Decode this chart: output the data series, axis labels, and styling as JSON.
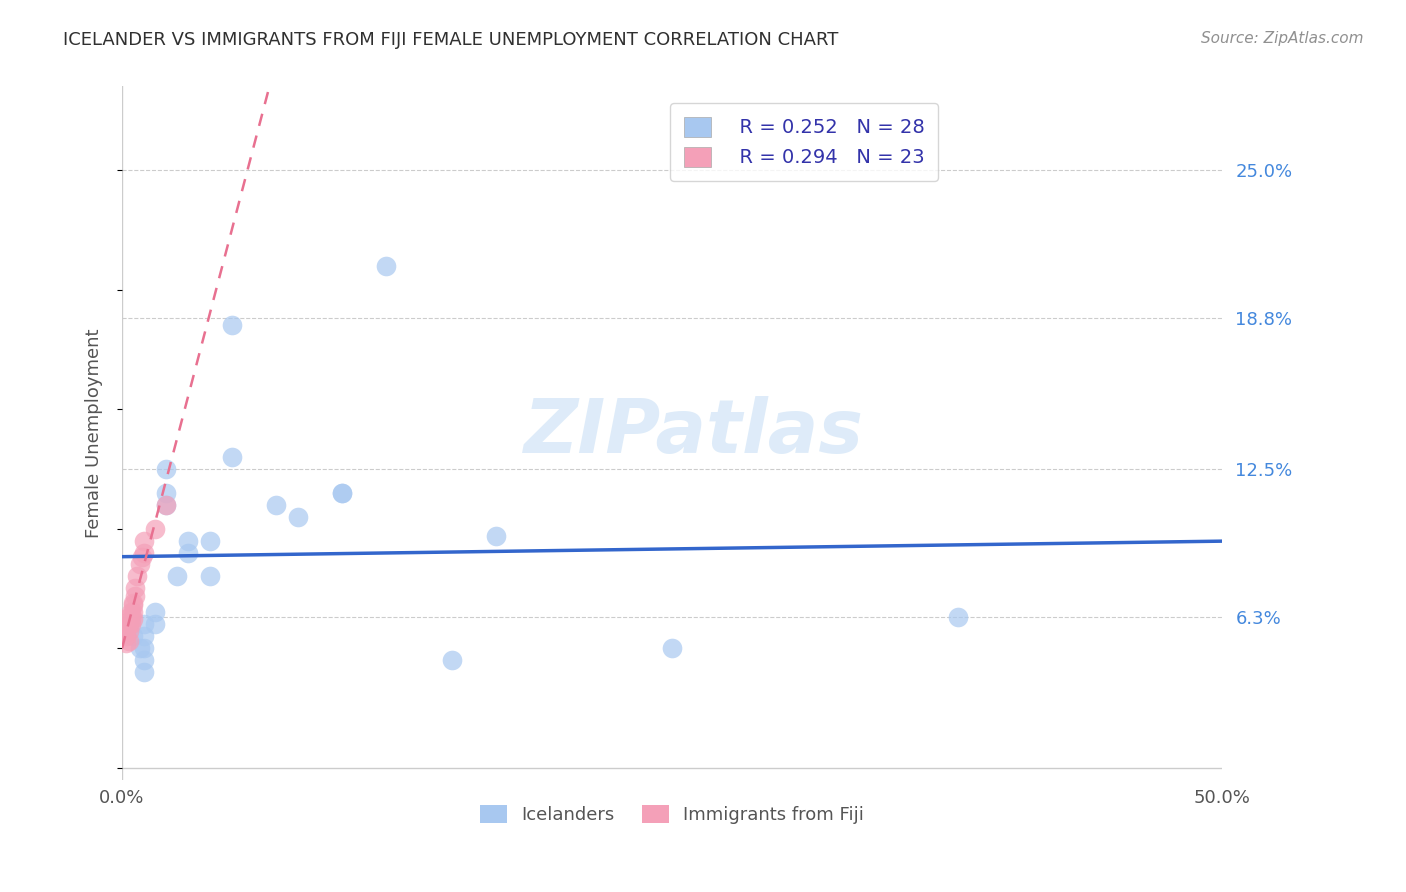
{
  "title": "ICELANDER VS IMMIGRANTS FROM FIJI FEMALE UNEMPLOYMENT CORRELATION CHART",
  "source": "Source: ZipAtlas.com",
  "ylabel": "Female Unemployment",
  "xlim": [
    0.0,
    0.5
  ],
  "ylim": [
    -0.005,
    0.285
  ],
  "ytick_labels_right": [
    "25.0%",
    "18.8%",
    "12.5%",
    "6.3%"
  ],
  "ytick_positions_right": [
    0.25,
    0.188,
    0.125,
    0.063
  ],
  "watermark": "ZIPatlas",
  "legend_r1": "R = 0.252",
  "legend_n1": "N = 28",
  "legend_r2": "R = 0.294",
  "legend_n2": "N = 23",
  "label_icelanders": "Icelanders",
  "label_fiji": "Immigrants from Fiji",
  "color_blue": "#A8C8F0",
  "color_pink": "#F4A0B8",
  "color_line_blue": "#3366CC",
  "color_line_pink": "#E87090",
  "color_title": "#303030",
  "color_source": "#909090",
  "icelanders_x": [
    0.005,
    0.008,
    0.01,
    0.01,
    0.01,
    0.01,
    0.01,
    0.015,
    0.015,
    0.02,
    0.02,
    0.02,
    0.025,
    0.03,
    0.03,
    0.04,
    0.04,
    0.05,
    0.05,
    0.07,
    0.08,
    0.1,
    0.1,
    0.12,
    0.15,
    0.17,
    0.25,
    0.38
  ],
  "icelanders_y": [
    0.055,
    0.05,
    0.06,
    0.055,
    0.05,
    0.045,
    0.04,
    0.065,
    0.06,
    0.125,
    0.115,
    0.11,
    0.08,
    0.095,
    0.09,
    0.08,
    0.095,
    0.185,
    0.13,
    0.11,
    0.105,
    0.115,
    0.115,
    0.21,
    0.045,
    0.097,
    0.05,
    0.063
  ],
  "fiji_x": [
    0.002,
    0.002,
    0.002,
    0.003,
    0.003,
    0.003,
    0.003,
    0.004,
    0.004,
    0.004,
    0.005,
    0.005,
    0.005,
    0.005,
    0.006,
    0.006,
    0.007,
    0.008,
    0.009,
    0.01,
    0.01,
    0.015,
    0.02
  ],
  "fiji_y": [
    0.058,
    0.055,
    0.052,
    0.063,
    0.06,
    0.057,
    0.053,
    0.065,
    0.062,
    0.06,
    0.069,
    0.068,
    0.065,
    0.062,
    0.075,
    0.072,
    0.08,
    0.085,
    0.088,
    0.095,
    0.09,
    0.1,
    0.11
  ]
}
